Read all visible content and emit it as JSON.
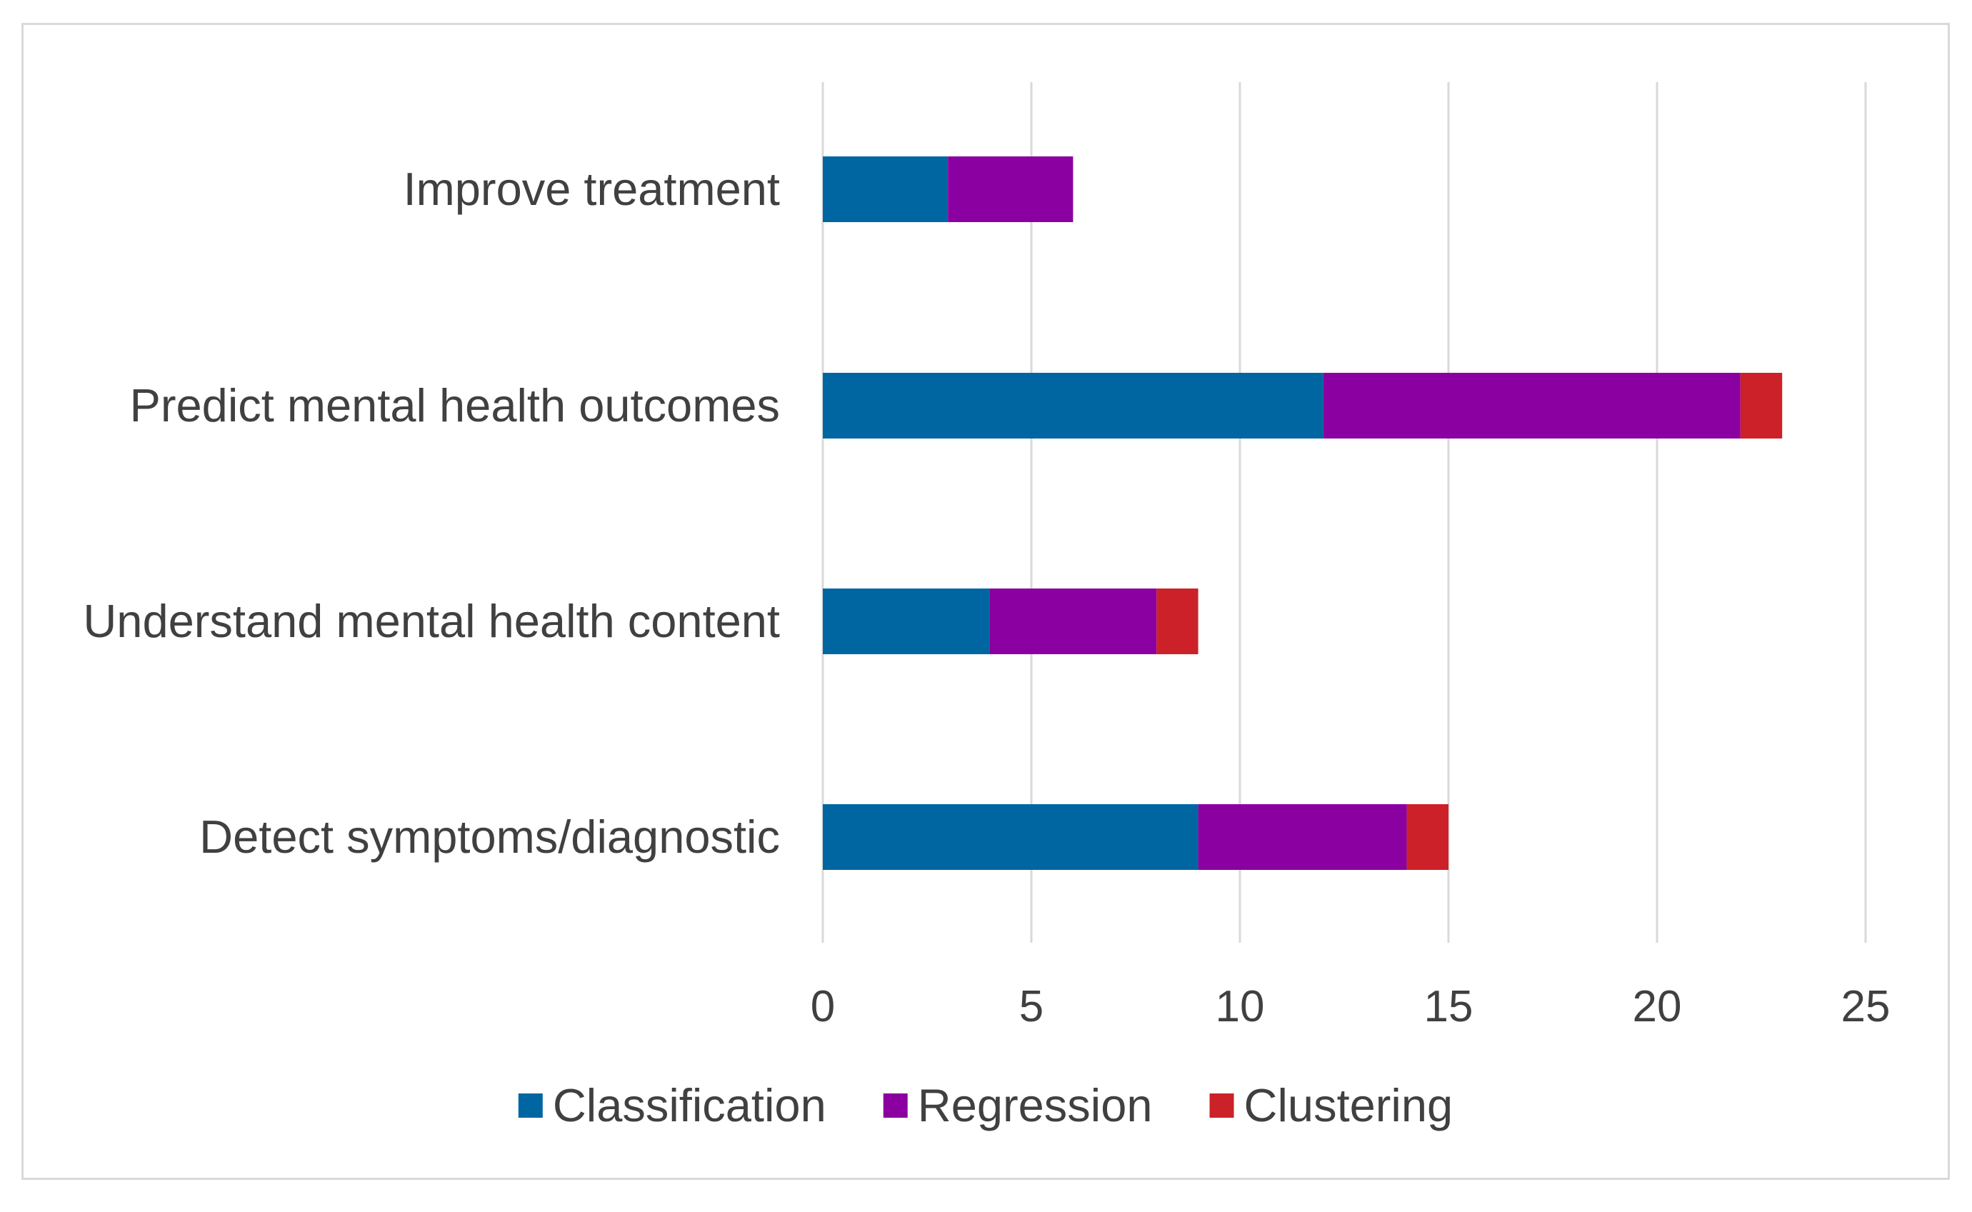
{
  "chart_data": {
    "type": "bar",
    "orientation": "horizontal",
    "stacked": true,
    "title": "",
    "xlabel": "",
    "ylabel": "",
    "xlim": [
      0,
      25
    ],
    "xticks": [
      0,
      5,
      10,
      15,
      20,
      25
    ],
    "grid": true,
    "legend_position": "bottom",
    "categories": [
      "Improve treatment",
      "Predict mental health outcomes",
      "Understand mental health content",
      "Detect symptoms/diagnostic"
    ],
    "series": [
      {
        "name": "Classification",
        "color": "#0066A1",
        "values": [
          3,
          12,
          4,
          9
        ]
      },
      {
        "name": "Regression",
        "color": "#8B00A0",
        "values": [
          3,
          10,
          4,
          5
        ]
      },
      {
        "name": "Clustering",
        "color": "#CC2128",
        "values": [
          0,
          1,
          1,
          1
        ]
      }
    ]
  }
}
